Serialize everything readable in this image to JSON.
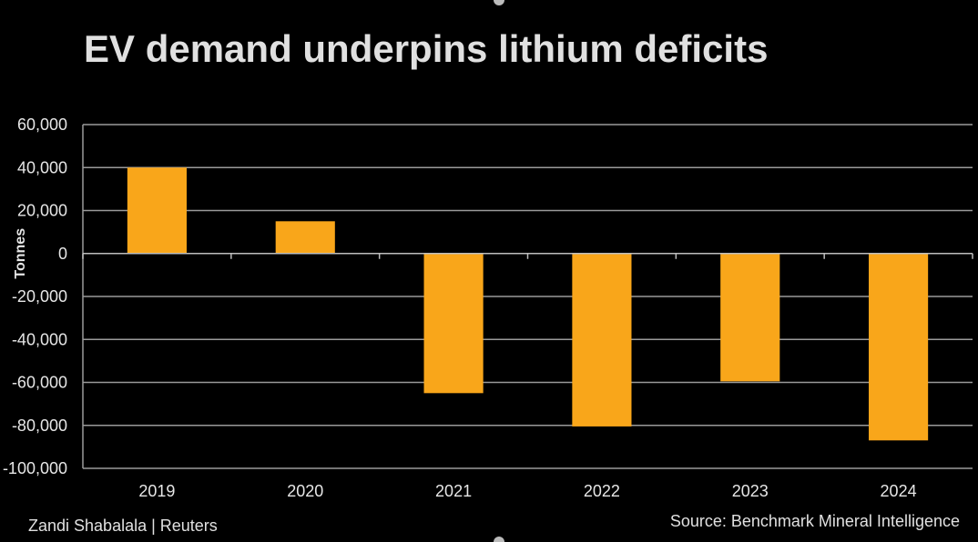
{
  "title": "EV demand underpins lithium deficits",
  "credit": "Zandi Shabalala | Reuters",
  "source": "Source: Benchmark Mineral Intelligence",
  "colors": {
    "bar": "#f9a61a",
    "grid": "#9a9a9a",
    "background": "#000000"
  },
  "chart_data": {
    "type": "bar",
    "categories": [
      "2019",
      "2020",
      "2021",
      "2022",
      "2023",
      "2024"
    ],
    "values": [
      40000,
      15000,
      -65000,
      -80500,
      -59500,
      -87000
    ],
    "ylabel": "Tonnes",
    "ylim": [
      -100000,
      60000
    ],
    "yticks": [
      60000,
      40000,
      20000,
      0,
      -20000,
      -40000,
      -60000,
      -80000,
      -100000
    ],
    "ytick_labels": [
      "60,000",
      "40,000",
      "20,000",
      "0",
      "-20,000",
      "-40,000",
      "-60,000",
      "-80,000",
      "-100,000"
    ],
    "grid": true
  }
}
